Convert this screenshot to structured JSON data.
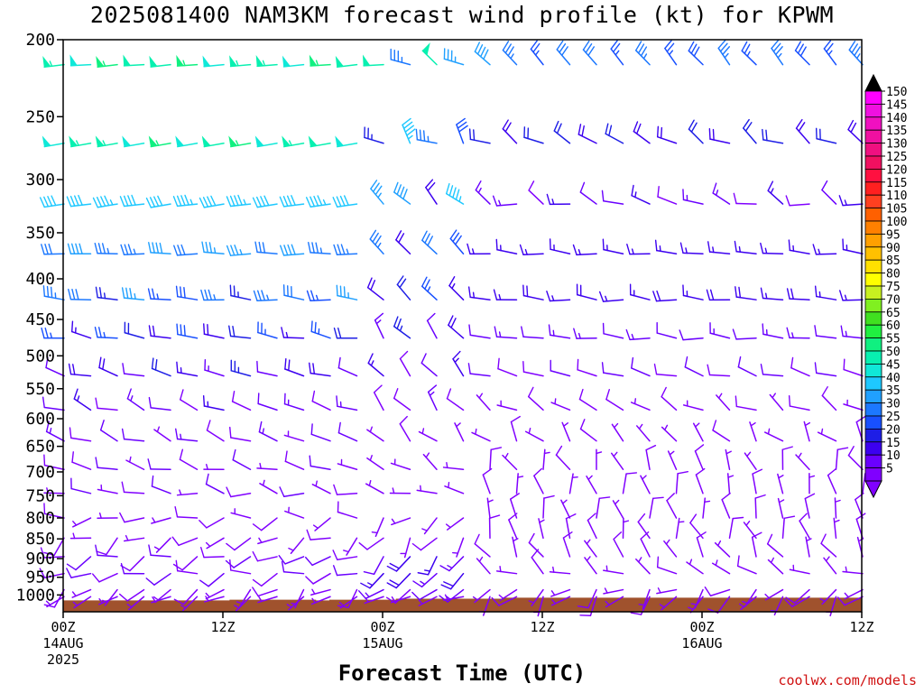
{
  "title": "2025081400 NAM3KM forecast wind profile (kt) for KPWM",
  "credit": "coolwx.com/models",
  "chart_data": {
    "type": "wind_barbs",
    "title": "2025081400 NAM3KM forecast wind profile (kt) for KPWM",
    "xlabel": "Forecast Time (UTC)",
    "ylabel": "",
    "units": "kt",
    "y_scale": "log",
    "y_reversed": true,
    "ylim": [
      1050,
      200
    ],
    "xlim": [
      0,
      60
    ],
    "y_ticks": [
      200,
      250,
      300,
      350,
      400,
      450,
      500,
      550,
      600,
      650,
      700,
      750,
      800,
      850,
      900,
      950,
      1000
    ],
    "x_ticks": [
      {
        "hour": 0,
        "lines": [
          "00Z",
          "14AUG",
          "2025"
        ]
      },
      {
        "hour": 12,
        "lines": [
          "12Z"
        ]
      },
      {
        "hour": 24,
        "lines": [
          "00Z",
          "15AUG"
        ]
      },
      {
        "hour": 36,
        "lines": [
          "12Z"
        ]
      },
      {
        "hour": 48,
        "lines": [
          "00Z",
          "16AUG"
        ]
      },
      {
        "hour": 60,
        "lines": [
          "12Z"
        ]
      }
    ],
    "colorbar": {
      "levels": [
        5,
        10,
        15,
        20,
        25,
        30,
        35,
        40,
        45,
        50,
        55,
        60,
        65,
        70,
        75,
        80,
        85,
        90,
        95,
        100,
        105,
        110,
        115,
        120,
        125,
        130,
        135,
        140,
        145,
        150
      ],
      "colors": [
        "#8000ff",
        "#6a00ff",
        "#3c00f0",
        "#1e1ee6",
        "#1850ff",
        "#1c78ff",
        "#20a0ff",
        "#1ec8ff",
        "#10e8d8",
        "#08f0b0",
        "#10f080",
        "#20f040",
        "#40e020",
        "#80f020",
        "#c8f020",
        "#ffff00",
        "#ffe000",
        "#ffc000",
        "#ffa000",
        "#ff8000",
        "#ff6000",
        "#ff4020",
        "#ff2020",
        "#ff1040",
        "#f01060",
        "#f01080",
        "#f010a0",
        "#f010c0",
        "#f010e0",
        "#ff00ff"
      ]
    },
    "surface_pressure": [
      {
        "hour": 0,
        "p": 1016
      },
      {
        "hour": 6,
        "p": 1016
      },
      {
        "hour": 12,
        "p": 1016
      },
      {
        "hour": 12.5,
        "p": 1014
      },
      {
        "hour": 18,
        "p": 1014
      },
      {
        "hour": 19,
        "p": 1016
      },
      {
        "hour": 20,
        "p": 1014
      },
      {
        "hour": 24,
        "p": 1014
      },
      {
        "hour": 25,
        "p": 1011
      },
      {
        "hour": 32,
        "p": 1011
      },
      {
        "hour": 33,
        "p": 1008
      },
      {
        "hour": 60,
        "p": 1008
      }
    ],
    "levels": [
      {
        "p": 215,
        "valid_to_hour": 60,
        "segments": [
          {
            "from": 0,
            "to": 24,
            "dir": 265,
            "spd": 52,
            "ddir": 2,
            "dspd": 4
          },
          {
            "from": 25,
            "to": 33,
            "dir": 300,
            "spd": 42,
            "ddir": 15,
            "dspd": -10
          },
          {
            "from": 34,
            "to": 60,
            "dir": 320,
            "spd": 30,
            "ddir": 6,
            "dspd": -4
          }
        ]
      },
      {
        "p": 270,
        "valid_to_hour": 60,
        "segments": [
          {
            "from": 0,
            "to": 23,
            "dir": 260,
            "spd": 52,
            "ddir": 0,
            "dspd": 4
          },
          {
            "from": 24,
            "to": 31,
            "dir": 310,
            "spd": 35,
            "ddir": 30,
            "dspd": -12
          },
          {
            "from": 32,
            "to": 60,
            "dir": 300,
            "spd": 20,
            "ddir": 20,
            "dspd": -2
          }
        ]
      },
      {
        "p": 322,
        "valid_to_hour": 60,
        "segments": [
          {
            "from": 0,
            "to": 23,
            "dir": 262,
            "spd": 42,
            "ddir": 2,
            "dspd": -2
          },
          {
            "from": 24,
            "to": 31,
            "dir": 315,
            "spd": 32,
            "ddir": 15,
            "dspd": -14
          },
          {
            "from": 32,
            "to": 60,
            "dir": 290,
            "spd": 12,
            "ddir": 25,
            "dspd": 4
          }
        ]
      },
      {
        "p": 372,
        "valid_to_hour": 60,
        "segments": [
          {
            "from": 0,
            "to": 23,
            "dir": 270,
            "spd": 35,
            "ddir": 5,
            "dspd": -4
          },
          {
            "from": 24,
            "to": 31,
            "dir": 315,
            "spd": 27,
            "ddir": 10,
            "dspd": -8
          },
          {
            "from": 32,
            "to": 60,
            "dir": 275,
            "spd": 17,
            "ddir": 8,
            "dspd": 0
          }
        ]
      },
      {
        "p": 425,
        "valid_to_hour": 60,
        "segments": [
          {
            "from": 0,
            "to": 23,
            "dir": 275,
            "spd": 30,
            "ddir": 8,
            "dspd": -6
          },
          {
            "from": 24,
            "to": 31,
            "dir": 315,
            "spd": 22,
            "ddir": 10,
            "dspd": -6
          },
          {
            "from": 32,
            "to": 60,
            "dir": 275,
            "spd": 17,
            "ddir": 10,
            "dspd": 2
          }
        ]
      },
      {
        "p": 475,
        "valid_to_hour": 60,
        "segments": [
          {
            "from": 0,
            "to": 23,
            "dir": 280,
            "spd": 22,
            "ddir": 10,
            "dspd": -6
          },
          {
            "from": 24,
            "to": 31,
            "dir": 320,
            "spd": 17,
            "ddir": 15,
            "dspd": -6
          },
          {
            "from": 32,
            "to": 60,
            "dir": 275,
            "spd": 12,
            "ddir": 10,
            "dspd": 2
          }
        ]
      },
      {
        "p": 530,
        "valid_to_hour": 60,
        "segments": [
          {
            "from": 0,
            "to": 23,
            "dir": 285,
            "spd": 17,
            "ddir": 10,
            "dspd": -6
          },
          {
            "from": 24,
            "to": 31,
            "dir": 320,
            "spd": 12,
            "ddir": 10,
            "dspd": -4
          },
          {
            "from": 32,
            "to": 60,
            "dir": 285,
            "spd": 10,
            "ddir": 12,
            "dspd": 2
          }
        ]
      },
      {
        "p": 585,
        "valid_to_hour": 60,
        "segments": [
          {
            "from": 0,
            "to": 23,
            "dir": 290,
            "spd": 12,
            "ddir": 15,
            "dspd": -4
          },
          {
            "from": 24,
            "to": 31,
            "dir": 320,
            "spd": 10,
            "ddir": 15,
            "dspd": -3
          },
          {
            "from": 32,
            "to": 60,
            "dir": 300,
            "spd": 7,
            "ddir": 20,
            "dspd": 2
          }
        ]
      },
      {
        "p": 640,
        "valid_to_hour": 60,
        "segments": [
          {
            "from": 0,
            "to": 23,
            "dir": 290,
            "spd": 10,
            "ddir": 15,
            "dspd": -3
          },
          {
            "from": 24,
            "to": 31,
            "dir": 315,
            "spd": 8,
            "ddir": 20,
            "dspd": -2
          },
          {
            "from": 32,
            "to": 60,
            "dir": 320,
            "spd": 6,
            "ddir": 25,
            "dspd": 2
          }
        ]
      },
      {
        "p": 695,
        "valid_to_hour": 60,
        "segments": [
          {
            "from": 0,
            "to": 23,
            "dir": 285,
            "spd": 9,
            "ddir": 15,
            "dspd": -3
          },
          {
            "from": 24,
            "to": 31,
            "dir": 300,
            "spd": 6,
            "ddir": 30,
            "dspd": -1
          },
          {
            "from": 32,
            "to": 60,
            "dir": 340,
            "spd": 7,
            "ddir": 25,
            "dspd": 2
          }
        ]
      },
      {
        "p": 745,
        "valid_to_hour": 60,
        "segments": [
          {
            "from": 0,
            "to": 23,
            "dir": 280,
            "spd": 8,
            "ddir": 20,
            "dspd": -3
          },
          {
            "from": 24,
            "to": 31,
            "dir": 280,
            "spd": 5,
            "ddir": 40,
            "dspd": 0
          },
          {
            "from": 32,
            "to": 60,
            "dir": 350,
            "spd": 7,
            "ddir": 20,
            "dspd": 2
          }
        ]
      },
      {
        "p": 800,
        "valid_to_hour": 60,
        "segments": [
          {
            "from": 0,
            "to": 23,
            "dir": 260,
            "spd": 7,
            "ddir": 30,
            "dspd": -2
          },
          {
            "from": 24,
            "to": 31,
            "dir": 230,
            "spd": 6,
            "ddir": 35,
            "dspd": 1
          },
          {
            "from": 32,
            "to": 60,
            "dir": 350,
            "spd": 8,
            "ddir": 20,
            "dspd": 2
          }
        ]
      },
      {
        "p": 848,
        "valid_to_hour": 60,
        "segments": [
          {
            "from": 0,
            "to": 23,
            "dir": 240,
            "spd": 7,
            "ddir": 30,
            "dspd": -2
          },
          {
            "from": 24,
            "to": 31,
            "dir": 215,
            "spd": 8,
            "ddir": 20,
            "dspd": 2
          },
          {
            "from": 32,
            "to": 60,
            "dir": 345,
            "spd": 8,
            "ddir": 25,
            "dspd": 2
          }
        ]
      },
      {
        "p": 895,
        "valid_to_hour": 60,
        "segments": [
          {
            "from": 0,
            "to": 23,
            "dir": 250,
            "spd": 10,
            "ddir": 25,
            "dspd": -2
          },
          {
            "from": 24,
            "to": 31,
            "dir": 215,
            "spd": 16,
            "ddir": 10,
            "dspd": 4
          },
          {
            "from": 32,
            "to": 60,
            "dir": 330,
            "spd": 8,
            "ddir": 20,
            "dspd": 2
          }
        ]
      },
      {
        "p": 940,
        "valid_to_hour": 60,
        "segments": [
          {
            "from": 0,
            "to": 23,
            "dir": 255,
            "spd": 10,
            "ddir": 25,
            "dspd": -2
          },
          {
            "from": 24,
            "to": 31,
            "dir": 225,
            "spd": 17,
            "ddir": 10,
            "dspd": 3
          },
          {
            "from": 32,
            "to": 60,
            "dir": 300,
            "spd": 6,
            "ddir": 25,
            "dspd": 2
          }
        ]
      },
      {
        "p": 985,
        "valid_to_hour": 60,
        "segments": [
          {
            "from": 0,
            "to": 23,
            "dir": 230,
            "spd": 7,
            "ddir": 25,
            "dspd": -2
          },
          {
            "from": 24,
            "to": 31,
            "dir": 235,
            "spd": 12,
            "ddir": 10,
            "dspd": 3
          },
          {
            "from": 32,
            "to": 60,
            "dir": 230,
            "spd": 6,
            "ddir": 30,
            "dspd": 2
          }
        ]
      },
      {
        "p": 1005,
        "valid_to_hour": 60,
        "segments": [
          {
            "from": 0,
            "to": 23,
            "dir": 240,
            "spd": 6,
            "ddir": 15,
            "dspd": -1
          },
          {
            "from": 24,
            "to": 31,
            "dir": 250,
            "spd": 6,
            "ddir": 15,
            "dspd": 1
          },
          {
            "from": 32,
            "to": 60,
            "dir": 220,
            "spd": 7,
            "ddir": 25,
            "dspd": 2
          }
        ]
      }
    ],
    "time_step_hours": 2,
    "grid": false,
    "legend": "colorbar-right"
  }
}
